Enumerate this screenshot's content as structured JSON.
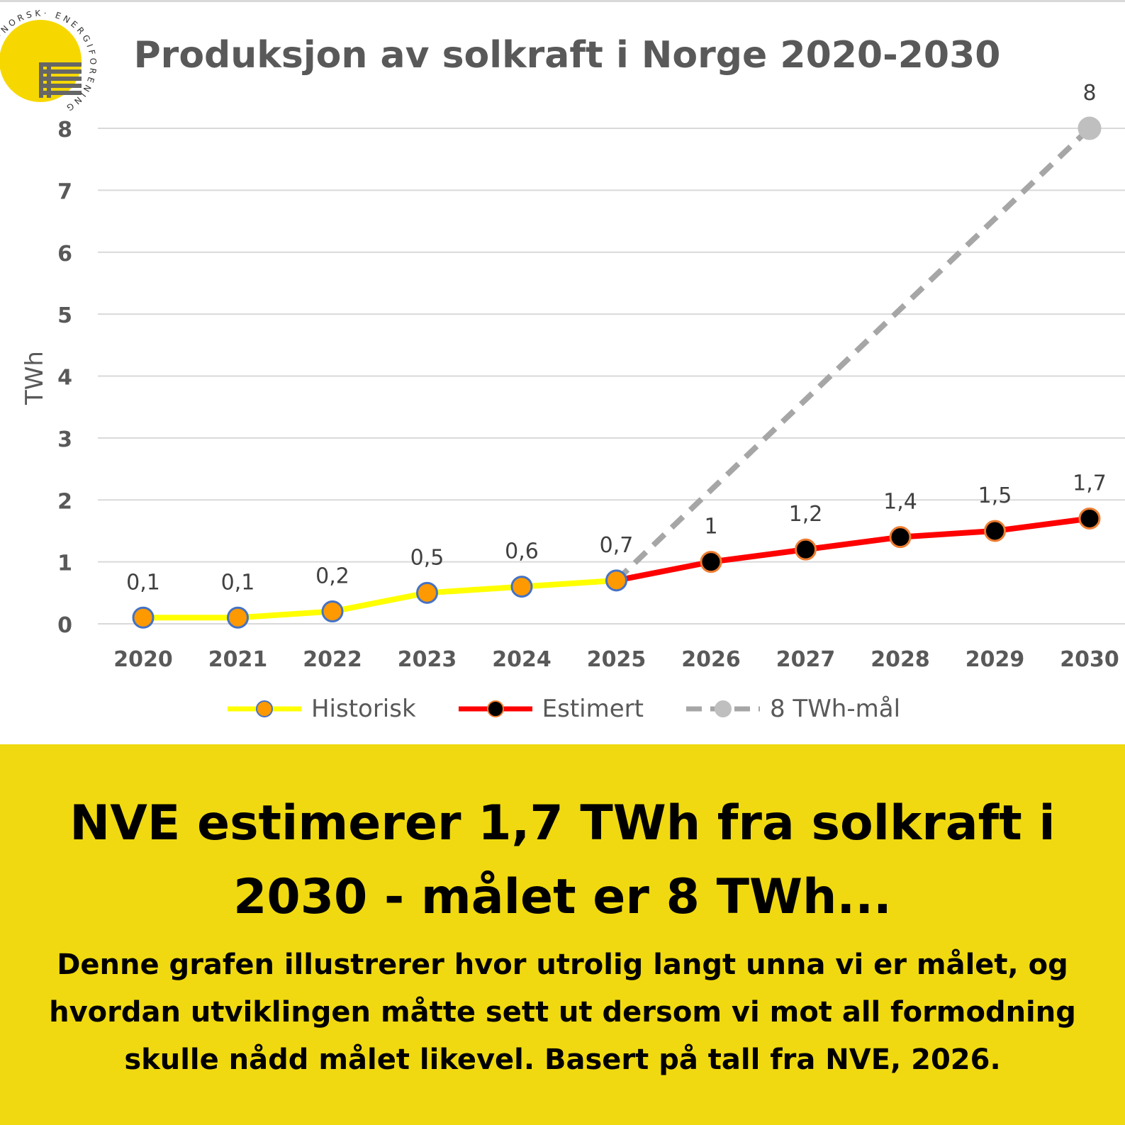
{
  "logo": {
    "brand_color": "#f6d800",
    "stripe_color": "#666666",
    "arc_text_top": "·NORSK·",
    "arc_text_right": "ENERGIFORENING"
  },
  "chart_data": {
    "type": "line",
    "title": "Produksjon av solkraft i Norge 2020-2030",
    "xlabel": "",
    "ylabel": "TWh",
    "categories": [
      "2020",
      "2021",
      "2022",
      "2023",
      "2024",
      "2025",
      "2026",
      "2027",
      "2028",
      "2029",
      "2030"
    ],
    "ylim": [
      0,
      8
    ],
    "yticks": [
      "0",
      "1",
      "2",
      "3",
      "4",
      "5",
      "6",
      "7",
      "8"
    ],
    "grid": true,
    "legend_position": "bottom",
    "series": [
      {
        "name": "Historisk",
        "color": "#ffff00",
        "marker_color": "#ff9900",
        "marker_edge": "#4472c4",
        "dashed": false,
        "points": [
          {
            "x": "2020",
            "y": 0.1,
            "label": "0,1"
          },
          {
            "x": "2021",
            "y": 0.1,
            "label": "0,1"
          },
          {
            "x": "2022",
            "y": 0.2,
            "label": "0,2"
          },
          {
            "x": "2023",
            "y": 0.5,
            "label": "0,5"
          },
          {
            "x": "2024",
            "y": 0.6,
            "label": "0,6"
          },
          {
            "x": "2025",
            "y": 0.7,
            "label": "0,7"
          }
        ]
      },
      {
        "name": "Estimert",
        "color": "#ff0000",
        "marker_color": "#000000",
        "marker_edge": "#ed7d31",
        "dashed": false,
        "points": [
          {
            "x": "2025",
            "y": 0.7,
            "label": "0,7"
          },
          {
            "x": "2026",
            "y": 1.0,
            "label": "1"
          },
          {
            "x": "2027",
            "y": 1.2,
            "label": "1,2"
          },
          {
            "x": "2028",
            "y": 1.4,
            "label": "1,4"
          },
          {
            "x": "2029",
            "y": 1.5,
            "label": "1,5"
          },
          {
            "x": "2030",
            "y": 1.7,
            "label": "1,7"
          }
        ]
      },
      {
        "name": "8 TWh-mål",
        "color": "#a6a6a6",
        "marker_color": "#bfbfbf",
        "marker_edge": "#bfbfbf",
        "dashed": true,
        "points": [
          {
            "x": "2025",
            "y": 0.7,
            "label": ""
          },
          {
            "x": "2030",
            "y": 8,
            "label": "8"
          }
        ]
      }
    ]
  },
  "banner": {
    "headline": "NVE estimerer 1,7 TWh fra solkraft i 2030 - målet er 8 TWh...",
    "body": "Denne grafen illustrerer hvor utrolig langt unna vi er målet, og hvordan utviklingen måtte sett ut dersom vi mot all formodning skulle nådd målet likevel. Basert på tall fra NVE, 2026."
  }
}
